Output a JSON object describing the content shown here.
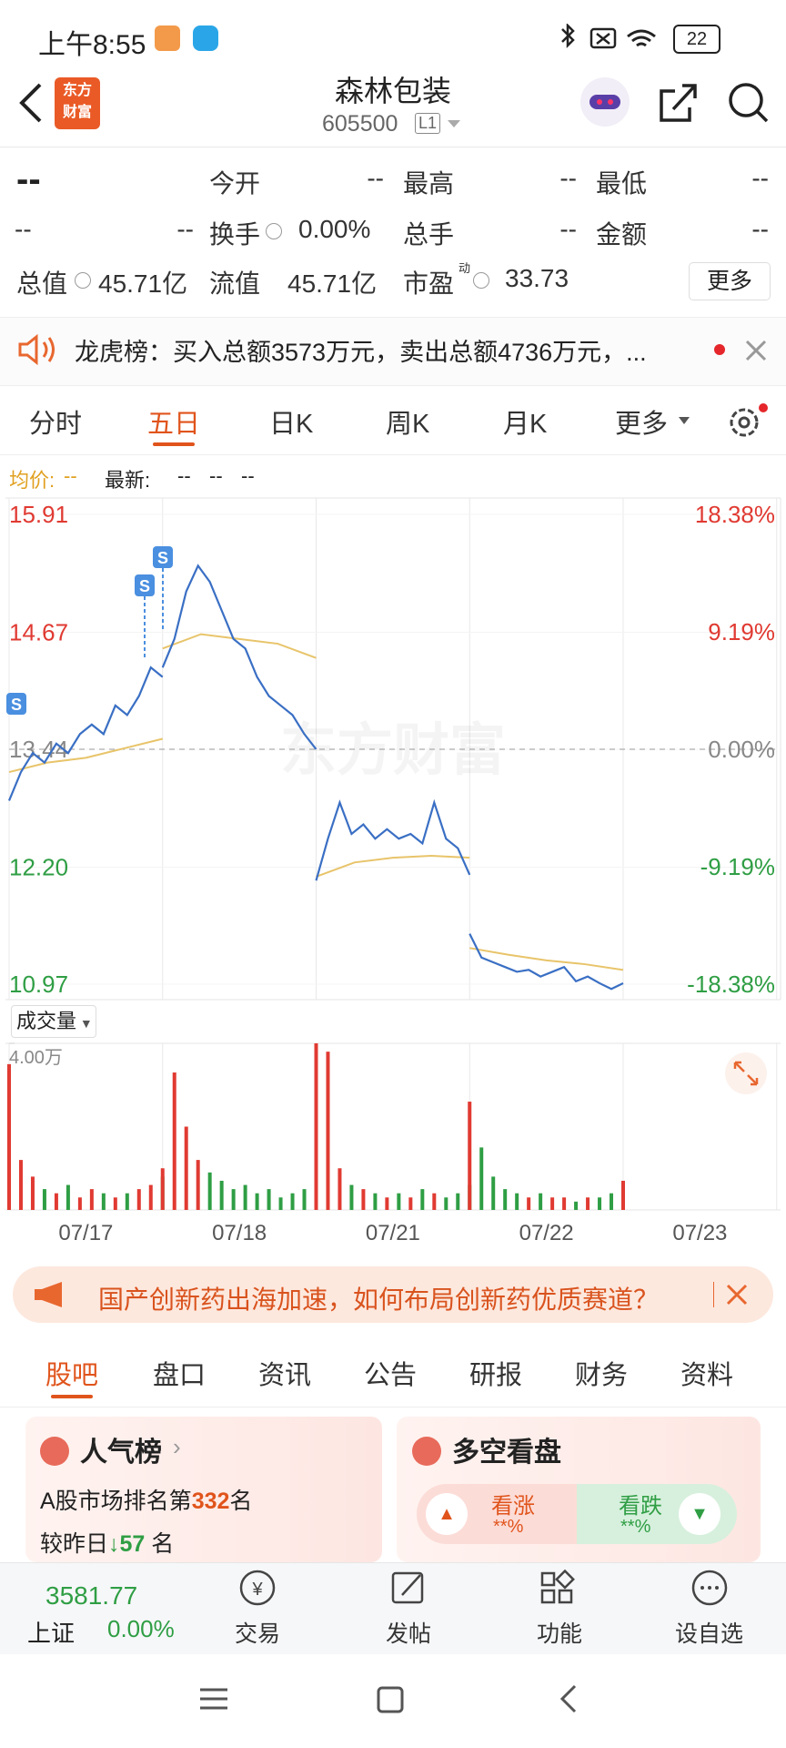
{
  "status": {
    "time": "上午8:55",
    "battery": "22"
  },
  "header": {
    "logo": [
      "东方",
      "财富"
    ],
    "title": "森林包装",
    "code": "605500",
    "badge": "L1"
  },
  "quote": {
    "price": "--",
    "open_label": "今开",
    "open": "--",
    "high_label": "最高",
    "high": "--",
    "low_label": "最低",
    "low": "--",
    "change": "--",
    "change_pct": "--",
    "turnover_label": "换手",
    "turnover": "0.00%",
    "volume_label": "总手",
    "volume": "--",
    "amount_label": "金额",
    "amount": "--",
    "mktcap_label": "总值",
    "mktcap": "45.71亿",
    "float_label": "流值",
    "float": "45.71亿",
    "pe_label": "市盈",
    "pe_sup": "动",
    "pe": "33.73",
    "more": "更多"
  },
  "notice": "龙虎榜：买入总额3573万元，卖出总额4736万元，...",
  "tabs": {
    "items": [
      "分时",
      "五日",
      "日K",
      "周K",
      "月K",
      "更多"
    ],
    "active": 1
  },
  "legend": {
    "avg_label": "均价:",
    "avg": "--",
    "last_label": "最新:",
    "last": [
      "--",
      "--",
      "--"
    ]
  },
  "chart": {
    "ylim": [
      10.97,
      15.91
    ],
    "yticks": [
      15.91,
      14.67,
      13.44,
      {
        "value": 12.2,
        "label": "12.20"
      },
      10.97
    ],
    "y2lim": [
      -18.38,
      18.38
    ],
    "y2ticks": [
      {
        "value": 18.38,
        "label": "18.38%"
      },
      {
        "value": 9.19,
        "label": "9.19%"
      },
      {
        "value": 0,
        "label": "0.00%"
      },
      {
        "value": -9.19,
        "label": "-9.19%"
      },
      {
        "value": -18.38,
        "label": "-18.38%"
      }
    ],
    "dates": [
      "07/17",
      "07/18",
      "07/21",
      "07/22",
      "07/23"
    ],
    "price_color": "#3a6fc4",
    "avg_color": "#e8c46a",
    "up_color": "#e03a32",
    "down_color": "#2f9e44",
    "watermark": "东方财富",
    "signals": [
      "S",
      "S",
      "S"
    ],
    "price": [
      [
        12.9,
        13.2,
        13.4,
        13.3,
        13.5,
        13.4,
        13.6,
        13.7,
        13.6,
        13.9,
        13.8,
        14.0,
        14.3,
        14.2
      ],
      [
        14.3,
        14.6,
        15.1,
        15.37,
        15.2,
        14.9,
        14.6,
        14.5,
        14.2,
        14.0,
        13.9,
        13.8,
        13.6,
        13.44
      ],
      [
        12.06,
        12.5,
        12.88,
        12.55,
        12.65,
        12.5,
        12.6,
        12.5,
        12.55,
        12.45,
        12.88,
        12.5,
        12.4,
        12.12
      ],
      [
        11.5,
        11.25,
        11.2,
        11.15,
        11.1,
        11.12,
        11.05,
        11.1,
        11.15,
        11.0,
        11.05,
        10.98,
        10.92,
        10.98
      ]
    ],
    "avg": [
      [
        13.2,
        13.3,
        13.35,
        13.45,
        13.55
      ],
      [
        14.5,
        14.65,
        14.6,
        14.55,
        14.4
      ],
      [
        12.1,
        12.25,
        12.3,
        12.32,
        12.3
      ],
      [
        11.35,
        11.28,
        11.22,
        11.18,
        11.12
      ]
    ],
    "volume_label": "成交量",
    "volume_ylim": [
      0,
      4
    ],
    "volume_yticks": [
      {
        "value": 4,
        "label": "4.00万"
      }
    ],
    "volume": [
      [
        3.5,
        1.2,
        0.8,
        0.5,
        0.4,
        0.6,
        0.3,
        0.5,
        0.4,
        0.3,
        0.4,
        0.5,
        0.6,
        0.8
      ],
      [
        1.0,
        3.3,
        2.0,
        1.2,
        0.9,
        0.7,
        0.5,
        0.6,
        0.4,
        0.5,
        0.3,
        0.4,
        0.5,
        0.7
      ],
      [
        4.0,
        3.8,
        1.0,
        0.6,
        0.5,
        0.4,
        0.3,
        0.4,
        0.3,
        0.5,
        0.4,
        0.3,
        0.4,
        0.6
      ],
      [
        2.6,
        1.5,
        0.8,
        0.5,
        0.4,
        0.3,
        0.4,
        0.3,
        0.3,
        0.2,
        0.3,
        0.3,
        0.4,
        0.7
      ]
    ]
  },
  "banner": "国产创新药出海加速，如何布局创新药优质赛道？",
  "section_tabs": {
    "items": [
      "股吧",
      "盘口",
      "资讯",
      "公告",
      "研报",
      "财务",
      "资料"
    ],
    "active": 0
  },
  "cards": {
    "popularity": {
      "title": "人气榜",
      "rank_prefix": "A股市场排名第",
      "rank": "332",
      "rank_suffix": "名",
      "change_prefix": "较昨日",
      "change": "57",
      "change_suffix": "名"
    },
    "sentiment": {
      "title": "多空看盘",
      "bull": "看涨",
      "bull_pct": "**%",
      "bear": "看跌",
      "bear_pct": "**%"
    }
  },
  "bottom_bar": {
    "index_value": "3581.77",
    "index_name": "上证",
    "index_change": "0.00%",
    "items": [
      "交易",
      "发帖",
      "功能",
      "设自选"
    ]
  }
}
